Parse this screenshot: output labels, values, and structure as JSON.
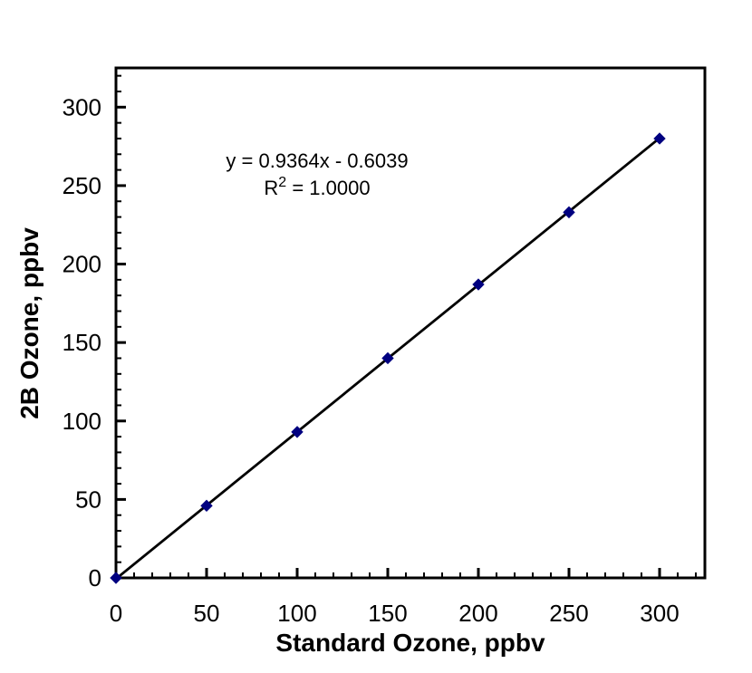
{
  "chart_data": {
    "type": "scatter",
    "title": "",
    "xlabel": "Standard Ozone, ppbv",
    "ylabel": "2B Ozone, ppbv",
    "x": [
      0,
      50,
      100,
      150,
      200,
      250,
      300
    ],
    "y": [
      0,
      46,
      93,
      140,
      187,
      233,
      280
    ],
    "xlim": [
      0,
      325
    ],
    "ylim": [
      0,
      325
    ],
    "x_major_tick_step": 50,
    "x_minor_tick_step": 10,
    "y_major_tick_step": 50,
    "y_minor_tick_step": 10,
    "x_tick_labels": [
      "0",
      "50",
      "100",
      "150",
      "200",
      "250",
      "300"
    ],
    "y_tick_labels": [
      "0",
      "50",
      "100",
      "150",
      "200",
      "250",
      "300"
    ],
    "trendline": {
      "slope": 0.9364,
      "intercept": -0.6039,
      "equation_text": "y = 0.9364x - 0.6039",
      "r2_base": "R",
      "r2_superscript": "2",
      "r2_rest": " = 1.0000"
    },
    "grid": false,
    "legend_position": "none",
    "marker": {
      "shape": "diamond",
      "color": "#000080"
    },
    "line_color": "#000000",
    "frame_color": "#000000",
    "background_color": "#ffffff"
  }
}
